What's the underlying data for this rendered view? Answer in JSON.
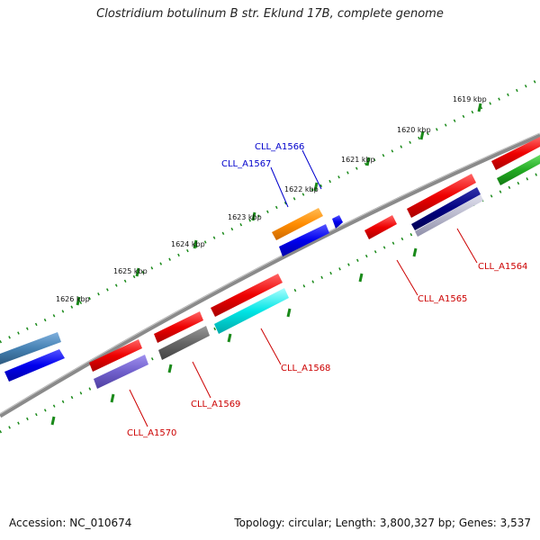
{
  "title": "Clostridium botulinum B str. Eklund 17B, complete genome",
  "footer": {
    "accession": "Accession: NC_010674",
    "summary": "Topology: circular; Length: 3,800,327 bp; Genes: 3,537"
  },
  "ruler_labels": [
    "1619 kbp",
    "1620 kbp",
    "1621 kbp",
    "1622 kbp",
    "1623 kbp",
    "1624 kbp",
    "1625 kbp",
    "1626 kbp"
  ],
  "gene_labels": {
    "CLL_A1564": "CLL_A1564",
    "CLL_A1565": "CLL_A1565",
    "CLL_A1566": "CLL_A1566",
    "CLL_A1567": "CLL_A1567",
    "CLL_A1568": "CLL_A1568",
    "CLL_A1569": "CLL_A1569",
    "CLL_A1570": "CLL_A1570"
  },
  "colors": {
    "backbone": "#8a8a8a",
    "tick": "#1a8a1a",
    "feature_red": "#ee0000",
    "feature_blue": "#0000ee",
    "feature_orange": "#ff8c00",
    "feature_cyan": "#00e5e5",
    "feature_gray": "#666666",
    "feature_navy": "#000080",
    "feature_purple": "#7060cc",
    "feature_steel": "#4682b4",
    "feature_green": "#22aa22"
  }
}
